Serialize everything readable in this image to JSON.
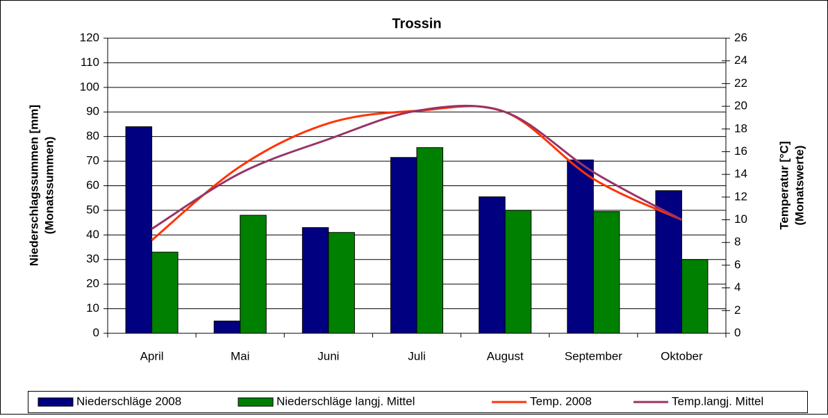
{
  "chart_data": {
    "type": "bar",
    "title": "Trossin",
    "ylabel": [
      "Niederschlagssummen [mm]",
      "(Monatssummen)"
    ],
    "y2label": [
      "Temperatur [°C]",
      "(Monatswerte)"
    ],
    "categories": [
      "April",
      "Mai",
      "Juni",
      "Juli",
      "August",
      "September",
      "Oktober"
    ],
    "series": [
      {
        "name": "Niederschläge 2008",
        "color": "#000080",
        "values": [
          84,
          5,
          43,
          71.5,
          55.5,
          70.5,
          58
        ]
      },
      {
        "name": "Niederschläge langj. Mittel",
        "color": "#008000",
        "values": [
          33,
          48,
          41,
          75.5,
          50,
          49.5,
          30
        ]
      },
      {
        "name": "Temp. 2008",
        "color": "#ff3300",
        "axis": "y2",
        "values": [
          8.2,
          14.7,
          18.5,
          19.6,
          19.5,
          13.6,
          10.0
        ]
      },
      {
        "name": "Temp.langj. Mittel",
        "color": "#993366",
        "axis": "y2",
        "values": [
          9.2,
          14.1,
          17.1,
          19.6,
          19.5,
          14.2,
          10.0
        ]
      }
    ],
    "ylim": [
      0,
      120
    ],
    "yticks": [
      0,
      10,
      20,
      30,
      40,
      50,
      60,
      70,
      80,
      90,
      100,
      110,
      120
    ],
    "y2lim": [
      0,
      26
    ],
    "y2ticks": [
      0,
      2,
      4,
      6,
      8,
      10,
      12,
      14,
      16,
      18,
      20,
      22,
      24,
      26
    ],
    "grid": true,
    "legend": "bottom"
  }
}
